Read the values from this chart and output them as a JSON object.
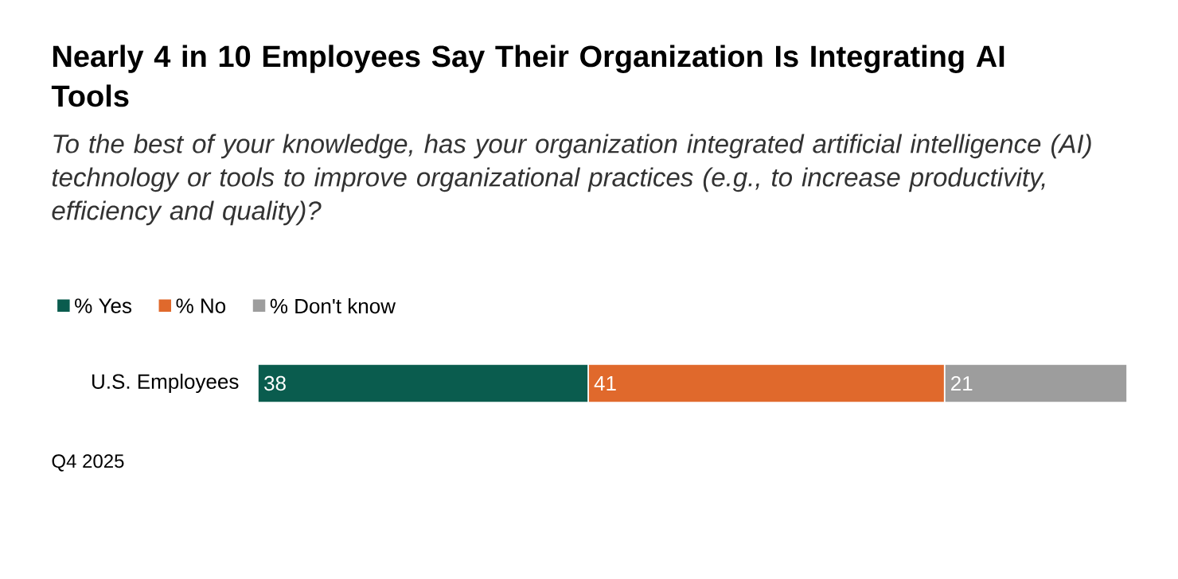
{
  "chart_data": {
    "type": "bar",
    "orientation": "horizontal",
    "stacked": true,
    "title": "Nearly 4 in 10 Employees Say Their Organization Is Integrating AI Tools",
    "subtitle": "To the best of your knowledge, has your organization integrated artificial intelligence (AI) technology or tools to improve organizational practices (e.g., to increase productivity, efficiency and quality)?",
    "categories": [
      "U.S. Employees"
    ],
    "series": [
      {
        "name": "% Yes",
        "color": "#0a5c4e",
        "values": [
          38
        ],
        "value_labels": [
          "38"
        ]
      },
      {
        "name": "% No",
        "color": "#e0692c",
        "values": [
          41
        ],
        "value_labels": [
          "41"
        ]
      },
      {
        "name": "% Don't know",
        "color": "#9d9d9d",
        "values": [
          21
        ],
        "value_labels": [
          "21"
        ]
      }
    ],
    "legend": "top left",
    "tick_labels": "y",
    "annotations": [
      "Q4 2025"
    ]
  }
}
